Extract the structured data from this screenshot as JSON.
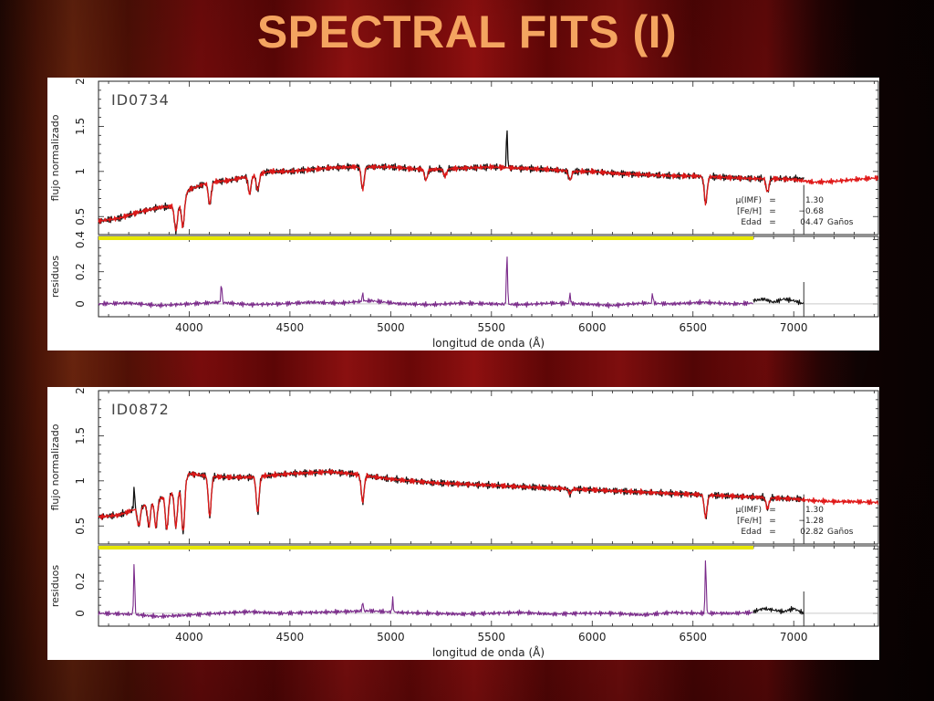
{
  "slide": {
    "title": "SPECTRAL FITS (I)"
  },
  "chart_data": [
    {
      "type": "line",
      "id_label": "ID0734",
      "xlabel": "longitud de onda (Å)",
      "ylabel_top": "flujo normalizado",
      "ylabel_bottom": "residuos",
      "xlim": [
        3550,
        7420
      ],
      "x_ticks": [
        4000,
        4500,
        5000,
        5500,
        6000,
        6500,
        7000
      ],
      "top_ylim": [
        0.3,
        2.0
      ],
      "top_y_ticks": [
        0.5,
        1,
        1.5,
        2
      ],
      "bottom_ylim": [
        -0.08,
        0.42
      ],
      "bottom_y_ticks": [
        0,
        0.2,
        0.4
      ],
      "params": [
        {
          "label": "μ(IMF)",
          "eq": "=",
          "value": "1.30",
          "unit": ""
        },
        {
          "label": "[Fe/H]",
          "eq": "=",
          "value": "−0.68",
          "unit": ""
        },
        {
          "label": "Edad",
          "eq": "=",
          "value": "04.47",
          "unit": "Gaños"
        }
      ],
      "fit_region_end": 7050,
      "mask_band": {
        "y": 0.42,
        "x_end": 6800,
        "color": "#e6e600"
      },
      "series": [
        {
          "role": "observed-spectrum",
          "color": "#111111",
          "x": [
            3550,
            3650,
            3750,
            3850,
            3950,
            4000,
            4100,
            4200,
            4300,
            4400,
            4500,
            4600,
            4700,
            4800,
            4900,
            5000,
            5100,
            5200,
            5300,
            5400,
            5500,
            5600,
            5700,
            5800,
            5900,
            6000,
            6100,
            6200,
            6300,
            6400,
            6500,
            6600,
            6700,
            6800,
            6900,
            7000,
            7050
          ],
          "y": [
            0.45,
            0.48,
            0.55,
            0.6,
            0.62,
            0.8,
            0.88,
            0.9,
            0.95,
            1.0,
            1.0,
            1.02,
            1.04,
            1.05,
            1.05,
            1.05,
            1.03,
            1.02,
            1.03,
            1.04,
            1.05,
            1.04,
            1.03,
            1.02,
            1.0,
            1.0,
            0.98,
            0.97,
            0.96,
            0.95,
            0.95,
            0.94,
            0.93,
            0.92,
            0.92,
            0.92,
            0.92
          ],
          "dips": [
            [
              3934,
              0.28
            ],
            [
              3969,
              0.3
            ],
            [
              4102,
              0.25
            ],
            [
              4300,
              0.2
            ],
            [
              4340,
              0.18
            ],
            [
              4861,
              0.25
            ],
            [
              5175,
              0.12
            ],
            [
              5270,
              0.08
            ],
            [
              5890,
              0.1
            ],
            [
              6563,
              0.3
            ],
            [
              6870,
              0.15
            ]
          ],
          "spikes": [
            [
              5577,
              0.45
            ]
          ]
        },
        {
          "role": "model-fit",
          "color": "#e01818",
          "x": [
            3550,
            3650,
            3750,
            3850,
            3950,
            4000,
            4100,
            4200,
            4300,
            4400,
            4500,
            4600,
            4700,
            4800,
            4900,
            5000,
            5100,
            5200,
            5300,
            5400,
            5500,
            5600,
            5700,
            5800,
            5900,
            6000,
            6100,
            6200,
            6300,
            6400,
            6500,
            6600,
            6700,
            6800,
            6900,
            7000,
            7100,
            7200,
            7300,
            7420
          ],
          "y": [
            0.45,
            0.48,
            0.55,
            0.6,
            0.62,
            0.8,
            0.88,
            0.9,
            0.95,
            1.0,
            1.0,
            1.02,
            1.04,
            1.05,
            1.05,
            1.05,
            1.03,
            1.02,
            1.03,
            1.04,
            1.05,
            1.04,
            1.03,
            1.02,
            1.0,
            1.0,
            0.98,
            0.97,
            0.96,
            0.95,
            0.95,
            0.94,
            0.93,
            0.92,
            0.92,
            0.91,
            0.88,
            0.89,
            0.91,
            0.93
          ],
          "dips": [
            [
              3934,
              0.28
            ],
            [
              3969,
              0.3
            ],
            [
              4102,
              0.25
            ],
            [
              4300,
              0.2
            ],
            [
              4340,
              0.18
            ],
            [
              4861,
              0.25
            ],
            [
              5175,
              0.12
            ],
            [
              5270,
              0.08
            ],
            [
              5890,
              0.1
            ],
            [
              6563,
              0.3
            ],
            [
              6870,
              0.15
            ]
          ]
        },
        {
          "role": "residuals",
          "color": "#7a2a8a",
          "x": [
            3550,
            3700,
            3850,
            4000,
            4150,
            4300,
            4450,
            4600,
            4750,
            4900,
            5050,
            5200,
            5350,
            5500,
            5650,
            5800,
            5950,
            6100,
            6250,
            6400,
            6550,
            6700,
            6800
          ],
          "y": [
            0.0,
            0.005,
            -0.01,
            0.0,
            0.01,
            -0.005,
            0.0,
            0.01,
            0.005,
            0.02,
            0.0,
            -0.005,
            0.005,
            0.0,
            -0.005,
            0.005,
            0.0,
            -0.01,
            0.005,
            0.0,
            0.01,
            0.0,
            0.005
          ],
          "spikes": [
            [
              4160,
              0.12
            ],
            [
              4861,
              0.05
            ],
            [
              5577,
              0.33
            ],
            [
              5890,
              0.06
            ],
            [
              6300,
              0.06
            ],
            [
              6820,
              0.08
            ]
          ]
        },
        {
          "role": "residuals-unfit",
          "color": "#111111",
          "x": [
            6800,
            6850,
            6900,
            6950,
            7000,
            7050
          ],
          "y": [
            0.02,
            0.03,
            0.01,
            0.03,
            0.02,
            0.0
          ]
        }
      ]
    },
    {
      "type": "line",
      "id_label": "ID0872",
      "xlabel": "longitud de onda (Å)",
      "ylabel_top": "flujo normalizado",
      "ylabel_bottom": "residuos",
      "xlim": [
        3550,
        7420
      ],
      "x_ticks": [
        4000,
        4500,
        5000,
        5500,
        6000,
        6500,
        7000
      ],
      "top_ylim": [
        0.3,
        2.0
      ],
      "top_y_ticks": [
        0.5,
        1,
        1.5,
        2
      ],
      "bottom_ylim": [
        -0.08,
        0.42
      ],
      "bottom_y_ticks": [
        0,
        0.2
      ],
      "params": [
        {
          "label": "μ(IMF)",
          "eq": "=",
          "value": "1.30",
          "unit": ""
        },
        {
          "label": "[Fe/H]",
          "eq": "=",
          "value": "−1.28",
          "unit": ""
        },
        {
          "label": "Edad",
          "eq": "=",
          "value": "02.82",
          "unit": "Gaños"
        }
      ],
      "fit_region_end": 7050,
      "mask_band": {
        "y": 0.42,
        "x_end": 6800,
        "color": "#e6e600"
      },
      "series": [
        {
          "role": "observed-spectrum",
          "color": "#111111",
          "x": [
            3550,
            3650,
            3750,
            3850,
            3950,
            4000,
            4100,
            4200,
            4300,
            4400,
            4500,
            4600,
            4700,
            4800,
            4900,
            5000,
            5100,
            5200,
            5300,
            5400,
            5500,
            5600,
            5700,
            5800,
            5900,
            6000,
            6100,
            6200,
            6300,
            6400,
            6500,
            6600,
            6700,
            6800,
            6900,
            7000,
            7050
          ],
          "y": [
            0.6,
            0.62,
            0.7,
            0.8,
            0.9,
            1.08,
            1.05,
            1.04,
            1.04,
            1.06,
            1.08,
            1.09,
            1.1,
            1.08,
            1.05,
            1.02,
            1.0,
            0.98,
            0.97,
            0.96,
            0.95,
            0.94,
            0.93,
            0.92,
            0.91,
            0.9,
            0.89,
            0.88,
            0.87,
            0.86,
            0.85,
            0.84,
            0.83,
            0.82,
            0.81,
            0.8,
            0.8
          ],
          "dips": [
            [
              3750,
              0.2
            ],
            [
              3800,
              0.25
            ],
            [
              3835,
              0.3
            ],
            [
              3889,
              0.38
            ],
            [
              3934,
              0.4
            ],
            [
              3970,
              0.55
            ],
            [
              4102,
              0.45
            ],
            [
              4340,
              0.4
            ],
            [
              4861,
              0.3
            ],
            [
              5890,
              0.05
            ],
            [
              6563,
              0.25
            ],
            [
              6870,
              0.12
            ]
          ],
          "spikes": [
            [
              3727,
              0.25
            ]
          ]
        },
        {
          "role": "model-fit",
          "color": "#e01818",
          "x": [
            3550,
            3650,
            3750,
            3850,
            3950,
            4000,
            4100,
            4200,
            4300,
            4400,
            4500,
            4600,
            4700,
            4800,
            4900,
            5000,
            5100,
            5200,
            5300,
            5400,
            5500,
            5600,
            5700,
            5800,
            5900,
            6000,
            6100,
            6200,
            6300,
            6400,
            6500,
            6600,
            6700,
            6800,
            6900,
            7000,
            7100,
            7200,
            7300,
            7420
          ],
          "y": [
            0.6,
            0.62,
            0.7,
            0.8,
            0.9,
            1.08,
            1.05,
            1.04,
            1.04,
            1.06,
            1.08,
            1.09,
            1.1,
            1.08,
            1.05,
            1.02,
            1.0,
            0.98,
            0.97,
            0.96,
            0.95,
            0.94,
            0.93,
            0.92,
            0.91,
            0.9,
            0.89,
            0.88,
            0.87,
            0.86,
            0.85,
            0.84,
            0.83,
            0.82,
            0.81,
            0.8,
            0.78,
            0.77,
            0.77,
            0.76
          ],
          "dips": [
            [
              3750,
              0.2
            ],
            [
              3800,
              0.25
            ],
            [
              3835,
              0.3
            ],
            [
              3889,
              0.38
            ],
            [
              3934,
              0.4
            ],
            [
              3970,
              0.55
            ],
            [
              4102,
              0.45
            ],
            [
              4340,
              0.4
            ],
            [
              4861,
              0.3
            ],
            [
              5890,
              0.05
            ],
            [
              6563,
              0.25
            ],
            [
              6870,
              0.12
            ]
          ]
        },
        {
          "role": "residuals",
          "color": "#7a2a8a",
          "x": [
            3550,
            3700,
            3850,
            4000,
            4150,
            4300,
            4450,
            4600,
            4750,
            4900,
            5050,
            5200,
            5350,
            5500,
            5650,
            5800,
            5950,
            6100,
            6250,
            6400,
            6550,
            6700,
            6800
          ],
          "y": [
            0.0,
            -0.005,
            -0.02,
            -0.01,
            0.0,
            0.01,
            0.0,
            0.005,
            0.01,
            0.015,
            0.005,
            0.0,
            -0.005,
            0.0,
            0.005,
            -0.005,
            0.0,
            0.0,
            -0.01,
            0.005,
            0.0,
            0.0,
            0.005
          ],
          "spikes": [
            [
              3727,
              0.32
            ],
            [
              4861,
              0.06
            ],
            [
              5010,
              0.08
            ],
            [
              6563,
              0.35
            ],
            [
              6830,
              0.06
            ]
          ]
        },
        {
          "role": "residuals-unfit",
          "color": "#111111",
          "x": [
            6800,
            6850,
            6900,
            6950,
            7000,
            7050
          ],
          "y": [
            0.01,
            0.03,
            0.02,
            0.01,
            0.03,
            0.0
          ]
        }
      ]
    }
  ]
}
